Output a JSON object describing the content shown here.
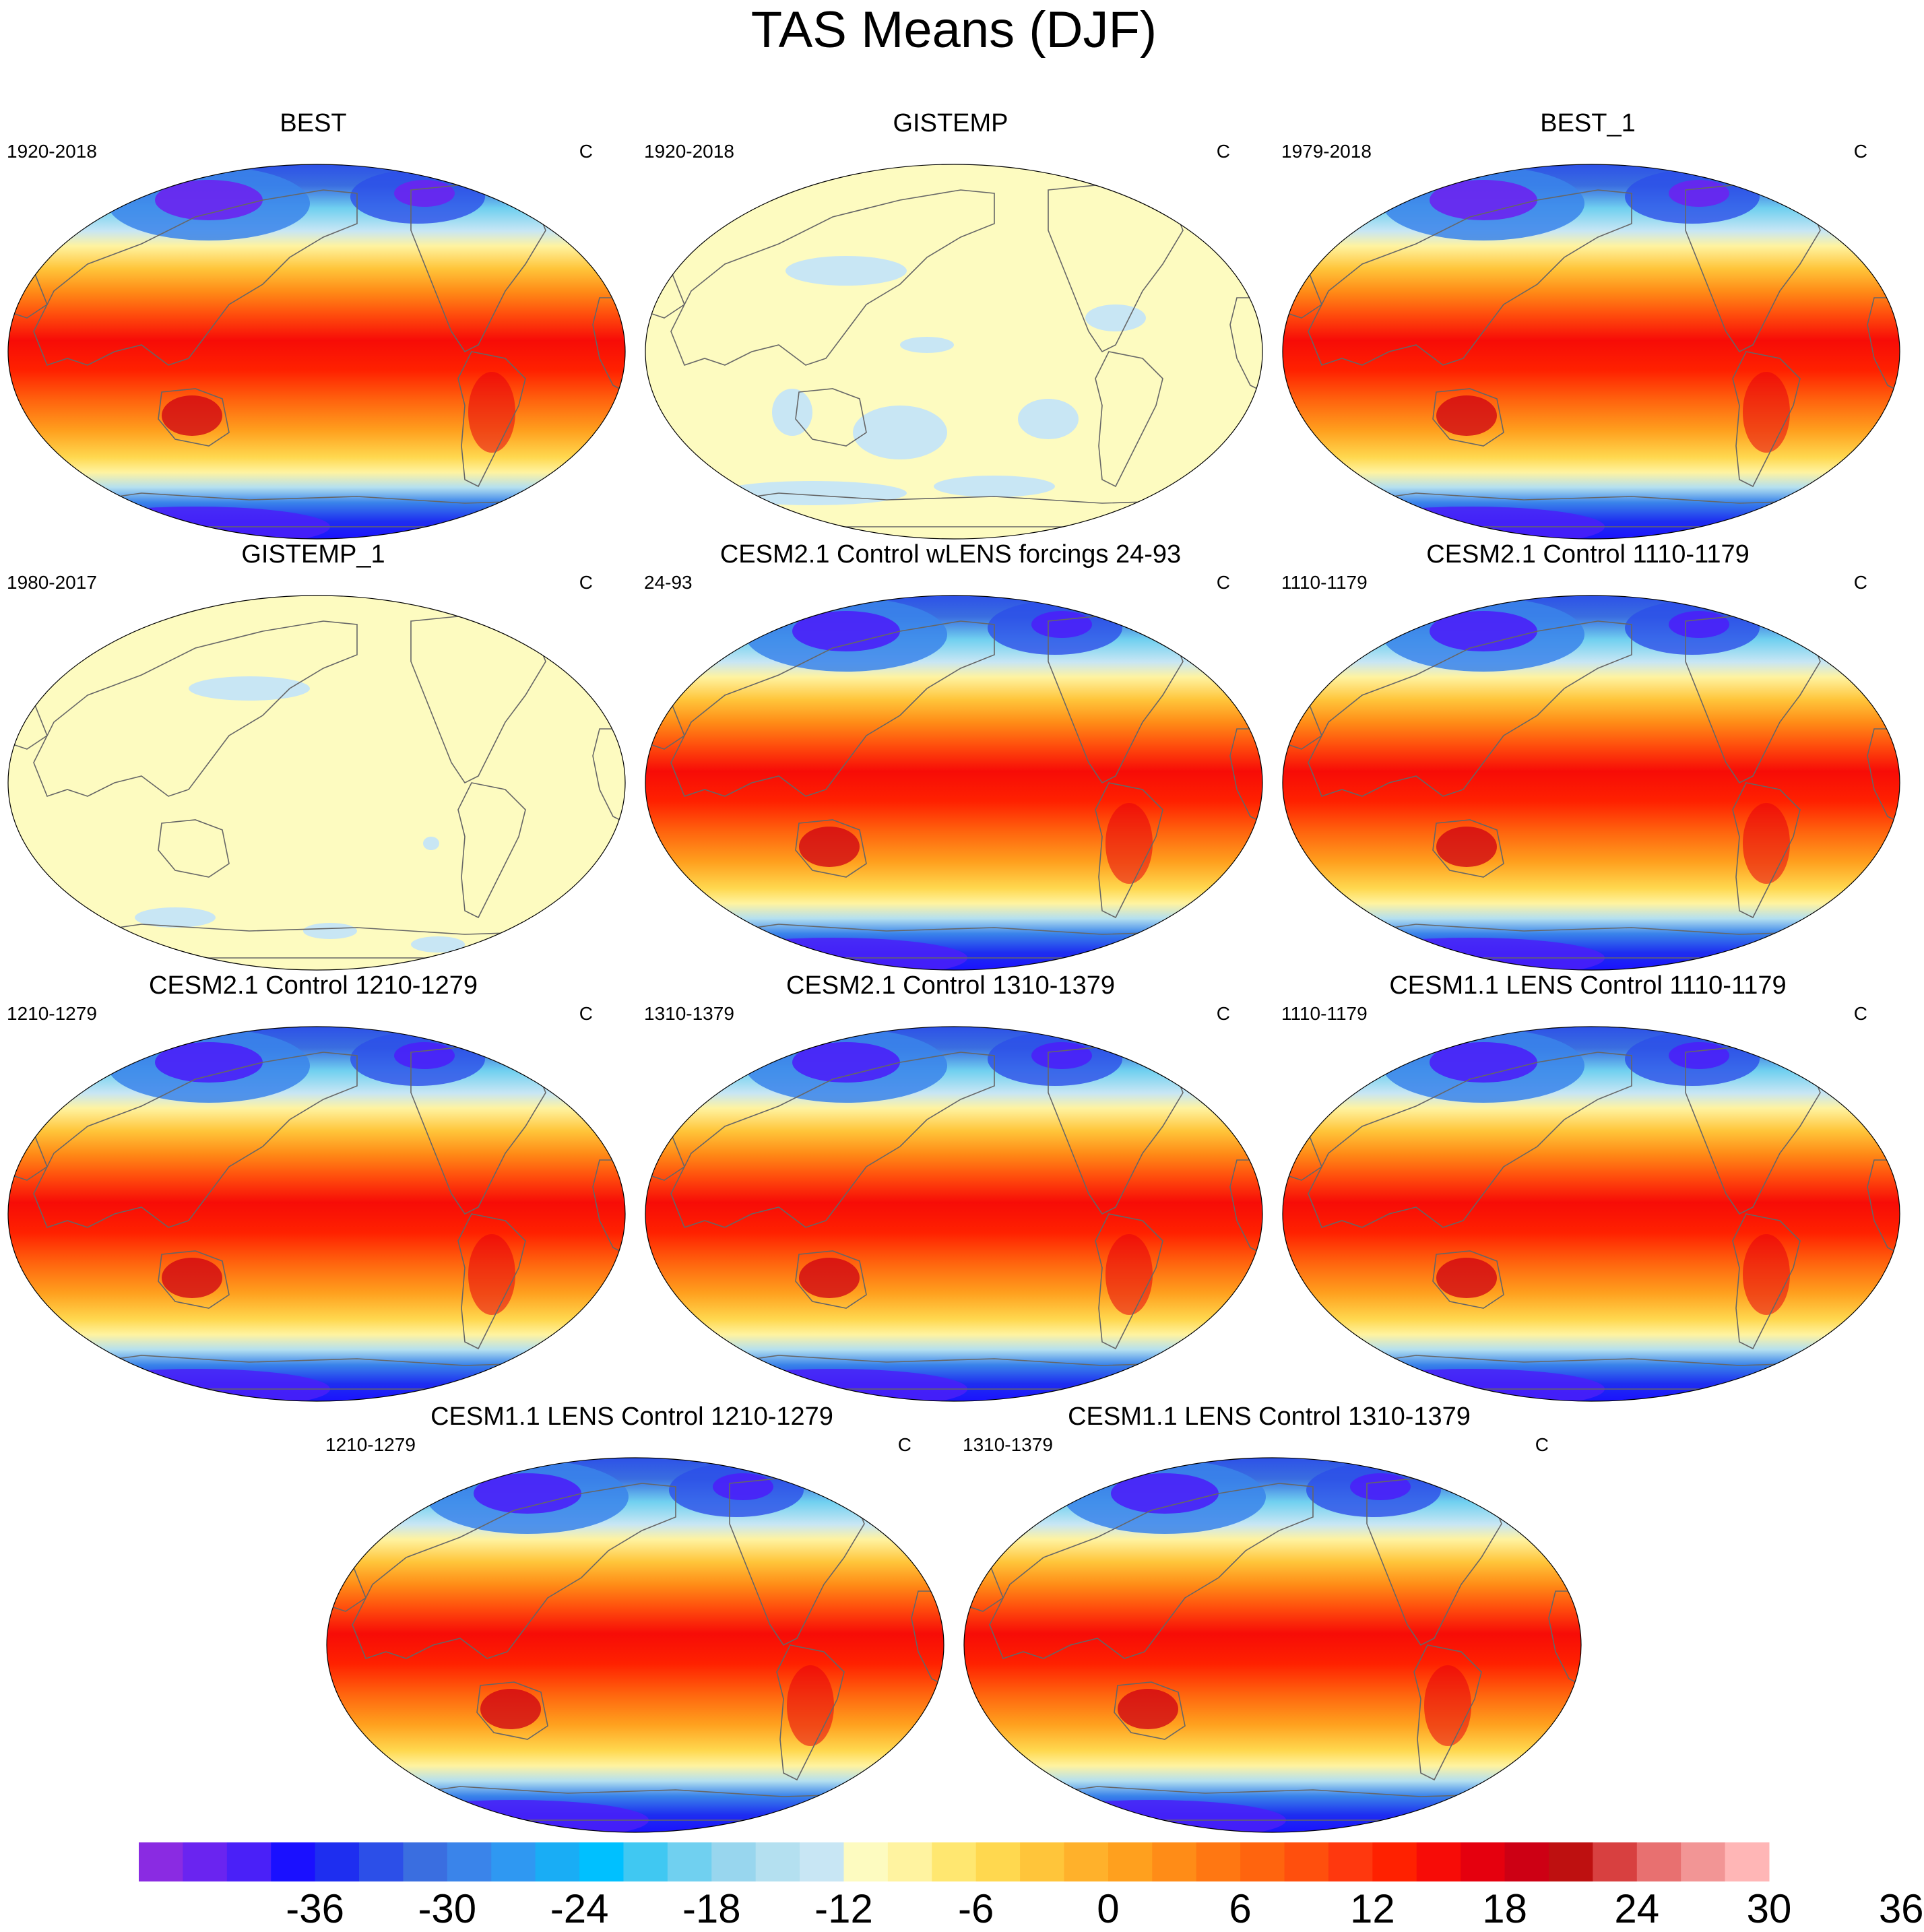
{
  "title": "TAS Means (DJF)",
  "panels": [
    {
      "title": "BEST",
      "left_label": "1920-2018",
      "right_label": "C",
      "pattern": "obs"
    },
    {
      "title": "GISTEMP",
      "left_label": "1920-2018",
      "right_label": "C",
      "pattern": "blank"
    },
    {
      "title": "BEST_1",
      "left_label": "1979-2018",
      "right_label": "C",
      "pattern": "obs"
    },
    {
      "title": "GISTEMP_1",
      "left_label": "1980-2017",
      "right_label": "C",
      "pattern": "blank"
    },
    {
      "title": "CESM2.1 Control wLENS forcings 24-93",
      "left_label": "24-93",
      "right_label": "C",
      "pattern": "model"
    },
    {
      "title": "CESM2.1 Control 1110-1179",
      "left_label": "1110-1179",
      "right_label": "C",
      "pattern": "model"
    },
    {
      "title": "CESM2.1 Control 1210-1279",
      "left_label": "1210-1279",
      "right_label": "C",
      "pattern": "model"
    },
    {
      "title": "CESM2.1 Control 1310-1379",
      "left_label": "1310-1379",
      "right_label": "C",
      "pattern": "model"
    },
    {
      "title": "CESM1.1 LENS Control 1110-1179",
      "left_label": "1110-1179",
      "right_label": "C",
      "pattern": "model"
    },
    {
      "title": "CESM1.1 LENS Control 1210-1279",
      "left_label": "1210-1279",
      "right_label": "C",
      "pattern": "model"
    },
    {
      "title": "CESM1.1 LENS Control 1310-1379",
      "left_label": "1310-1379",
      "right_label": "C",
      "pattern": "model"
    }
  ],
  "colorbar": {
    "labels": [
      "-36",
      "-30",
      "-24",
      "-18",
      "-12",
      "-6",
      "0",
      "6",
      "12",
      "18",
      "24",
      "30",
      "36"
    ],
    "colors": [
      "#8a2be2",
      "#6a24f0",
      "#4a20f8",
      "#1a10ff",
      "#1e2ef0",
      "#2c4fe8",
      "#3a6ee0",
      "#3a84ea",
      "#2f98f2",
      "#19adf5",
      "#00c0ff",
      "#40c8f2",
      "#70d0f0",
      "#98d6ee",
      "#b4e0f0",
      "#c8e6f4",
      "#fdfbc0",
      "#fff3a0",
      "#ffe770",
      "#ffd84f",
      "#ffc53a",
      "#ffb12b",
      "#ffa01e",
      "#ff8c17",
      "#ff7712",
      "#ff640e",
      "#ff4f0d",
      "#ff380e",
      "#ff2100",
      "#f70c07",
      "#e5000e",
      "#cd0014",
      "#be1010",
      "#d84040",
      "#e87070",
      "#f29595",
      "#ffb6b6"
    ]
  }
}
